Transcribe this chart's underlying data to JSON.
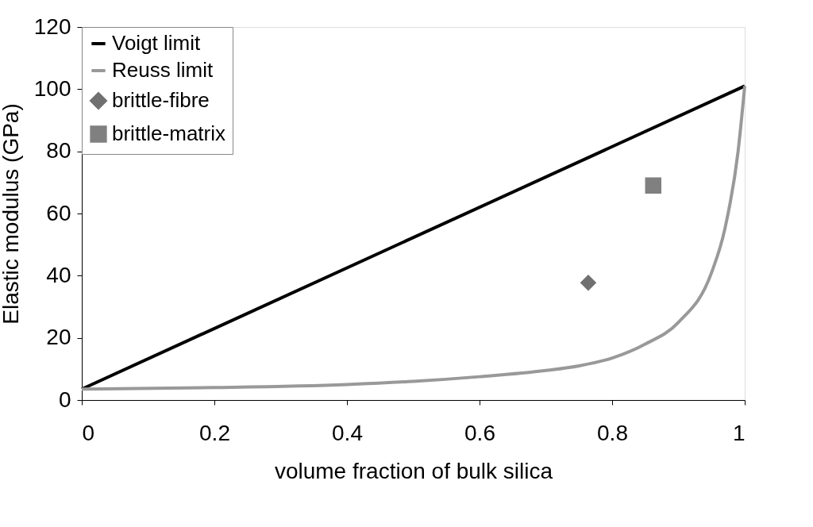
{
  "chart_data": {
    "type": "line",
    "xlabel": "volume fraction of bulk silica",
    "ylabel": "Elastic modulus (GPa)",
    "xlim": [
      0,
      1
    ],
    "xticks": [
      0,
      0.2,
      0.4,
      0.6,
      0.8,
      1
    ],
    "ylim": [
      0,
      120
    ],
    "yticks": [
      0,
      20,
      40,
      60,
      80,
      100,
      120
    ],
    "grid": false,
    "legend": "top left",
    "series": [
      {
        "name": "Voigt limit",
        "color": "#000000",
        "marker": "none",
        "x": [
          0,
          1
        ],
        "values": [
          3.5,
          101
        ]
      },
      {
        "name": "Reuss limit",
        "color": "#999999",
        "marker": "none",
        "x": [
          0,
          0.2,
          0.4,
          0.5,
          0.6,
          0.7,
          0.75,
          0.8,
          0.85,
          0.9,
          0.95,
          0.97,
          0.99,
          1
        ],
        "values": [
          3.5,
          4,
          5,
          6,
          7.5,
          9.5,
          11,
          13.5,
          18,
          25,
          41,
          55,
          80,
          101
        ]
      },
      {
        "name": "brittle-fibre",
        "type": "scatter",
        "color": "#707070",
        "marker": "diamond",
        "x": [
          0.764
        ],
        "values": [
          37.7
        ]
      },
      {
        "name": "brittle-matrix",
        "type": "scatter",
        "color": "#808080",
        "marker": "square",
        "x": [
          0.862
        ],
        "values": [
          69
        ]
      }
    ]
  }
}
